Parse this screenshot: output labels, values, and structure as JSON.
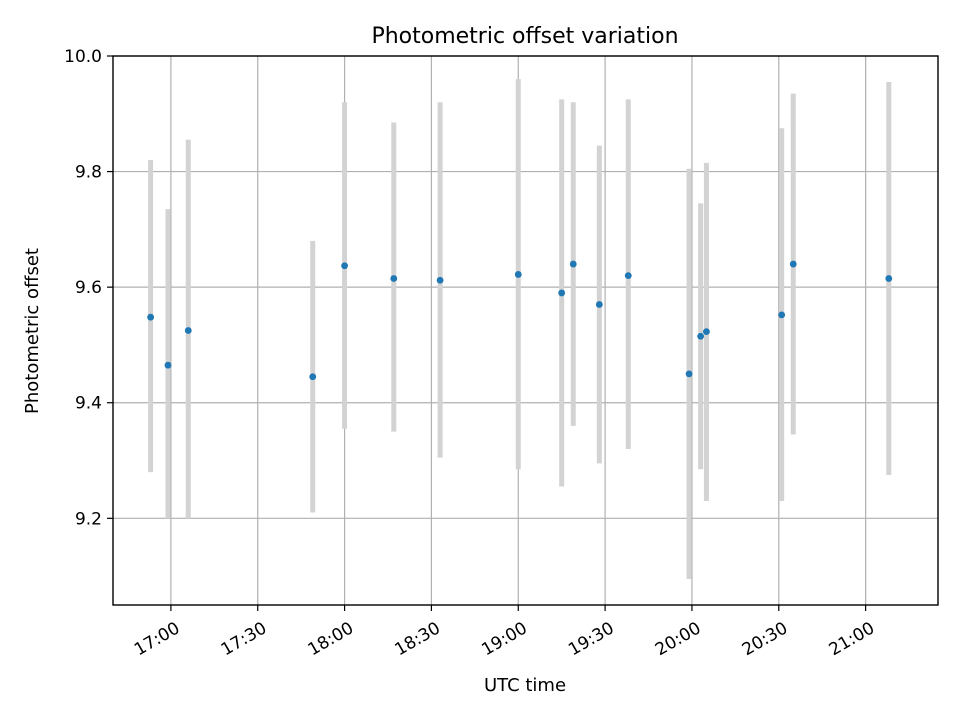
{
  "chart_data": {
    "type": "scatter",
    "title": "Photometric offset variation",
    "xlabel": "UTC time",
    "ylabel": "Photometric offset",
    "x_unit": "time of day (HH:MM, UTC)",
    "xlim": [
      "16:40",
      "21:25"
    ],
    "ylim": [
      9.05,
      10.0
    ],
    "x_ticks": [
      "17:00",
      "17:30",
      "18:00",
      "18:30",
      "19:00",
      "19:30",
      "20:00",
      "20:30",
      "21:00"
    ],
    "y_ticks": [
      "9.2",
      "9.4",
      "9.6",
      "9.8",
      "10.0"
    ],
    "grid": true,
    "colors": {
      "point": "#1f77b4",
      "errorbar": "#d3d3d3"
    },
    "points": [
      {
        "x": "16:53",
        "y": 9.548,
        "y_low": 9.28,
        "y_high": 9.82
      },
      {
        "x": "16:59",
        "y": 9.465,
        "y_low": 9.2,
        "y_high": 9.735
      },
      {
        "x": "17:06",
        "y": 9.525,
        "y_low": 9.2,
        "y_high": 9.855
      },
      {
        "x": "17:49",
        "y": 9.445,
        "y_low": 9.21,
        "y_high": 9.68
      },
      {
        "x": "18:00",
        "y": 9.637,
        "y_low": 9.355,
        "y_high": 9.92
      },
      {
        "x": "18:17",
        "y": 9.615,
        "y_low": 9.35,
        "y_high": 9.885
      },
      {
        "x": "18:33",
        "y": 9.612,
        "y_low": 9.305,
        "y_high": 9.92
      },
      {
        "x": "19:00",
        "y": 9.622,
        "y_low": 9.285,
        "y_high": 9.96
      },
      {
        "x": "19:15",
        "y": 9.59,
        "y_low": 9.255,
        "y_high": 9.925
      },
      {
        "x": "19:19",
        "y": 9.64,
        "y_low": 9.36,
        "y_high": 9.92
      },
      {
        "x": "19:28",
        "y": 9.57,
        "y_low": 9.295,
        "y_high": 9.845
      },
      {
        "x": "19:38",
        "y": 9.62,
        "y_low": 9.32,
        "y_high": 9.925
      },
      {
        "x": "19:59",
        "y": 9.45,
        "y_low": 9.095,
        "y_high": 9.805
      },
      {
        "x": "20:03",
        "y": 9.515,
        "y_low": 9.285,
        "y_high": 9.745
      },
      {
        "x": "20:05",
        "y": 9.523,
        "y_low": 9.23,
        "y_high": 9.815
      },
      {
        "x": "20:31",
        "y": 9.552,
        "y_low": 9.23,
        "y_high": 9.875
      },
      {
        "x": "20:35",
        "y": 9.64,
        "y_low": 9.345,
        "y_high": 9.935
      },
      {
        "x": "21:08",
        "y": 9.615,
        "y_low": 9.275,
        "y_high": 9.955
      }
    ]
  }
}
